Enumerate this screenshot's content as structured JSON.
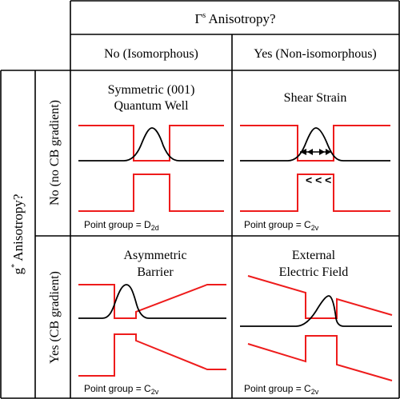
{
  "header": {
    "gamma_symbol": "Γ",
    "gamma_sup": "s",
    "gamma_rest": " Anisotropy?",
    "col_no": "No (Isomorphous)",
    "col_yes": "Yes (Non-isomorphous)"
  },
  "side": {
    "g_symbol": "g",
    "g_sup": "*",
    "g_rest": " Anisotropy?",
    "row_no": "No (no CB gradient)",
    "row_yes": "Yes (CB gradient)"
  },
  "cells": {
    "sym_title_1": "Symmetric (001)",
    "sym_title_2": "Quantum Well",
    "sym_pg_prefix": "Point group = D",
    "sym_pg_sub": "2d",
    "shear_title": "Shear Strain",
    "shear_arrows": "< < <",
    "shear_pg_prefix": "Point group = C",
    "shear_pg_sub": "2v",
    "asym_title_1": "Asymmetric",
    "asym_title_2": "Barrier",
    "asym_pg_prefix": "Point group = C",
    "asym_pg_sub": "2v",
    "ext_title_1": "External",
    "ext_title_2": "Electric Field",
    "ext_pg_prefix": "Point group = C",
    "ext_pg_sub": "2v"
  },
  "colors": {
    "band_edge": "#ee1c1c",
    "wavefunction": "#000000",
    "grid": "#000000"
  }
}
